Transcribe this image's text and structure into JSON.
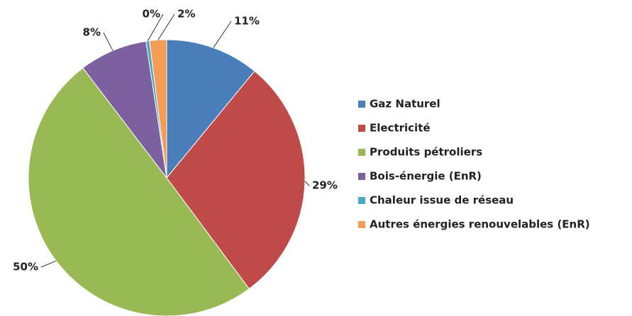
{
  "chart_data": {
    "type": "pie",
    "categories": [
      "Gaz Naturel",
      "Electricité",
      "Produits pétroliers",
      "Bois-énergie (EnR)",
      "Chaleur issue de réseau",
      "Autres énergies renouvelables (EnR)"
    ],
    "values": [
      11,
      29,
      50,
      8,
      0.4,
      2
    ],
    "value_labels": [
      "11%",
      "29%",
      "50%",
      "8%",
      "0%",
      "2%"
    ],
    "colors": [
      "#4a7ebb",
      "#be4b48",
      "#98b954",
      "#7d60a0",
      "#46aac5",
      "#f59d56"
    ],
    "legend": "right"
  }
}
